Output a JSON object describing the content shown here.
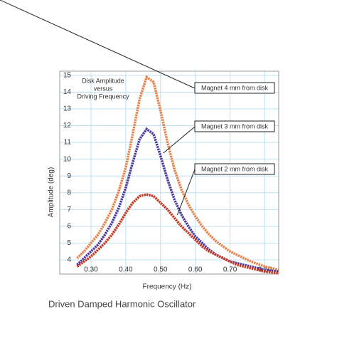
{
  "chart_data": {
    "type": "line",
    "caption": "Driven Damped Harmonic Oscillator",
    "x_label": "Frequency (Hz)",
    "y_label": "Amplitude (deg)",
    "plot_title": [
      "Disk Amplitude",
      "versus",
      "Driving Frequency"
    ],
    "x": [
      0.26,
      0.28,
      0.3,
      0.32,
      0.34,
      0.36,
      0.38,
      0.4,
      0.42,
      0.44,
      0.46,
      0.48,
      0.5,
      0.52,
      0.54,
      0.56,
      0.58,
      0.6,
      0.62,
      0.64,
      0.66,
      0.68,
      0.7,
      0.72,
      0.74,
      0.76,
      0.78,
      0.8,
      0.82,
      0.84
    ],
    "series": [
      {
        "name": "Magnet 4 mm from disk",
        "color": "#e8824a",
        "values": [
          4.1,
          4.5,
          5.0,
          5.5,
          6.2,
          7.0,
          8.1,
          9.5,
          11.5,
          13.6,
          14.9,
          14.6,
          12.9,
          11.0,
          9.4,
          8.2,
          7.3,
          6.6,
          6.0,
          5.5,
          5.1,
          4.8,
          4.5,
          4.3,
          4.1,
          3.9,
          3.75,
          3.6,
          3.5,
          3.4
        ]
      },
      {
        "name": "Magnet 3 mm from disk",
        "color": "#4b3aa0",
        "values": [
          3.7,
          4.1,
          4.5,
          4.9,
          5.5,
          6.2,
          7.1,
          8.3,
          9.8,
          11.2,
          11.8,
          11.5,
          10.2,
          8.8,
          7.6,
          6.7,
          6.0,
          5.4,
          5.0,
          4.6,
          4.3,
          4.1,
          3.9,
          3.8,
          3.7,
          3.6,
          3.5,
          3.4,
          3.35,
          3.3
        ]
      },
      {
        "name": "Magnet 2 mm from disk",
        "color": "#c9361f",
        "values": [
          3.6,
          3.9,
          4.2,
          4.6,
          5.0,
          5.5,
          6.1,
          6.8,
          7.4,
          7.8,
          7.9,
          7.8,
          7.4,
          7.0,
          6.5,
          6.0,
          5.6,
          5.2,
          4.8,
          4.5,
          4.3,
          4.1,
          3.9,
          3.7,
          3.6,
          3.5,
          3.4,
          3.3,
          3.25,
          3.2
        ]
      }
    ],
    "xlim": [
      0.21,
      0.84
    ],
    "ylim": [
      3.15,
      15.25
    ],
    "xticks": [
      {
        "value": 0.3,
        "label": "0.30"
      },
      {
        "value": 0.4,
        "label": "0.40"
      },
      {
        "value": 0.5,
        "label": "0.50"
      },
      {
        "value": 0.6,
        "label": "0.60"
      },
      {
        "value": 0.7,
        "label": "0.70"
      },
      {
        "value": 0.8,
        "label": "0.80"
      }
    ],
    "yticks": [
      4,
      5,
      6,
      7,
      8,
      9,
      10,
      11,
      12,
      13,
      14,
      15
    ],
    "grid": true
  }
}
